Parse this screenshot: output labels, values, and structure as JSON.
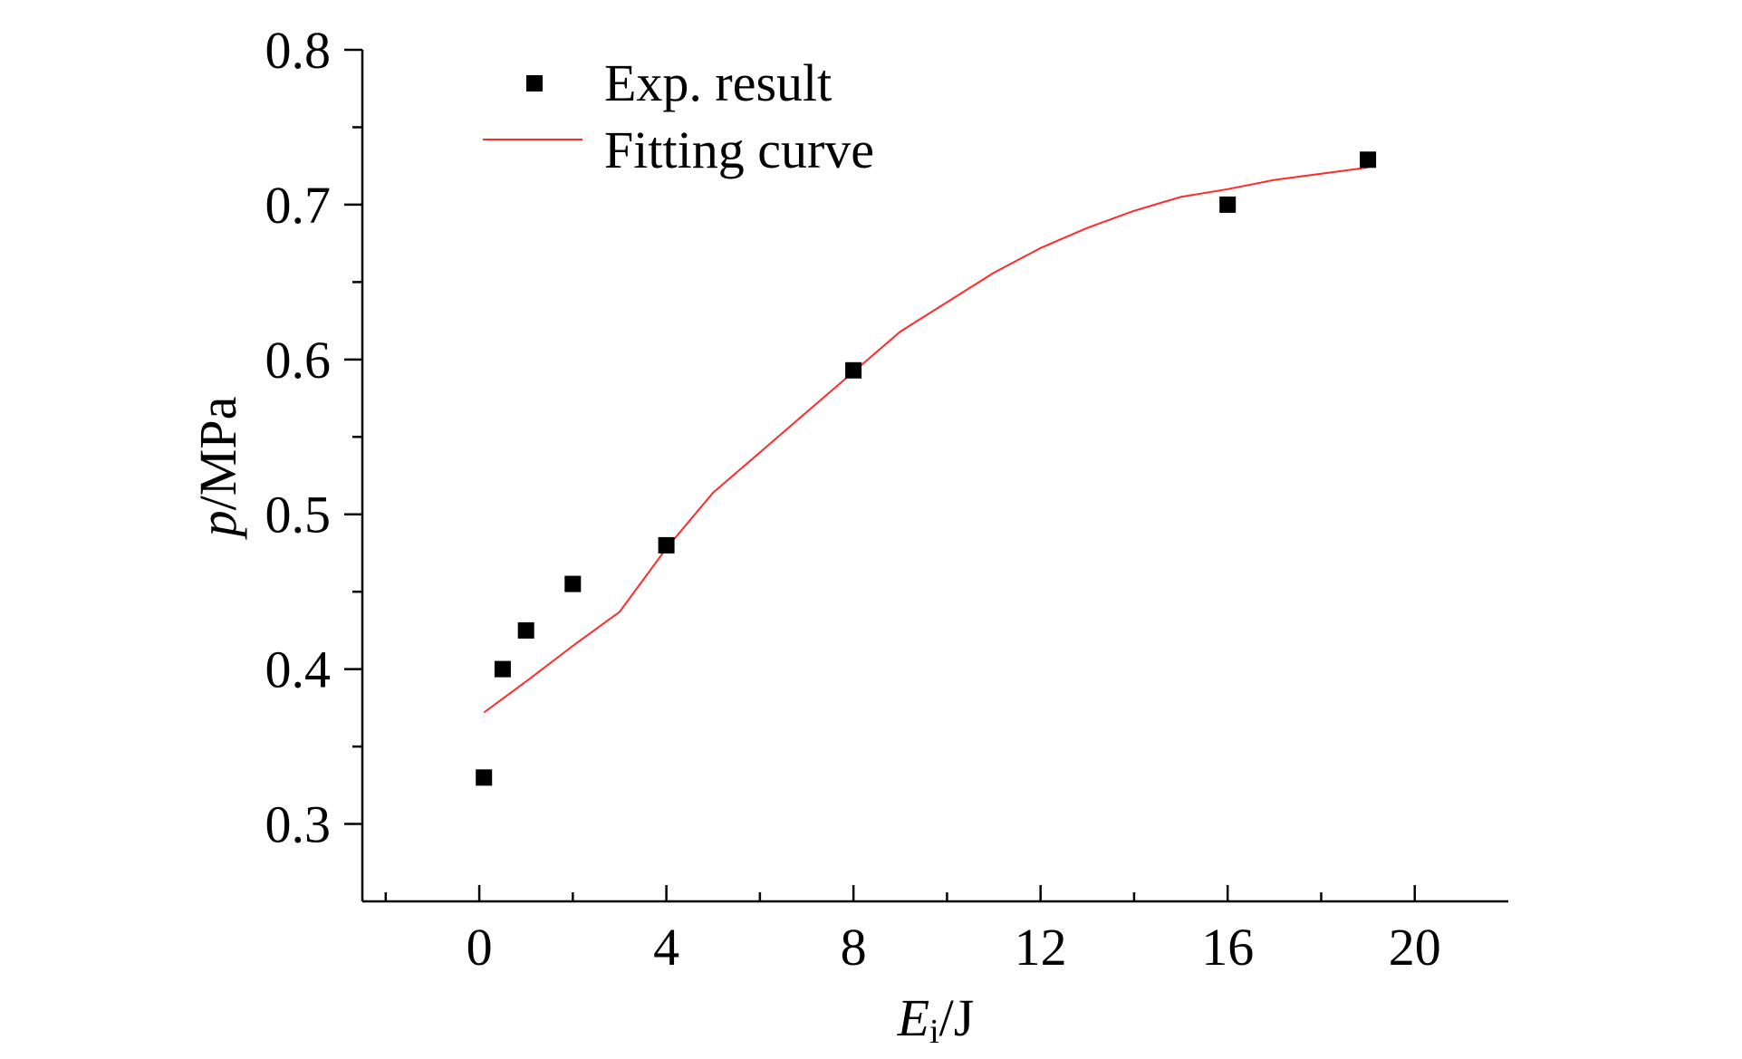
{
  "chart_data": {
    "type": "scatter",
    "xlabel": {
      "main": "E",
      "sub": "i",
      "unit": "/J"
    },
    "ylabel": {
      "main": "p",
      "unit": "/MPa"
    },
    "xlim": [
      -2.5,
      22
    ],
    "ylim": [
      0.25,
      0.8
    ],
    "x_ticks": [
      0,
      4,
      8,
      12,
      16,
      20
    ],
    "x_tick_labels": [
      "0",
      "4",
      "8",
      "12",
      "16",
      "20"
    ],
    "x_minor_ticks": [
      -2,
      2,
      6,
      10,
      14,
      18
    ],
    "y_ticks": [
      0.3,
      0.4,
      0.5,
      0.6,
      0.7,
      0.8
    ],
    "y_tick_labels": [
      "0.3",
      "0.4",
      "0.5",
      "0.6",
      "0.7",
      "0.8"
    ],
    "y_minor_ticks": [
      0.35,
      0.45,
      0.55,
      0.65,
      0.75
    ],
    "grid": false,
    "legend_position": "top-left",
    "series": [
      {
        "name": "Exp. result",
        "kind": "scatter",
        "marker": "square",
        "color": "#000000",
        "x": [
          0.1,
          0.5,
          1,
          2,
          4,
          8,
          16,
          19
        ],
        "y": [
          0.33,
          0.4,
          0.425,
          0.455,
          0.48,
          0.593,
          0.7,
          0.729
        ]
      },
      {
        "name": "Fitting curve",
        "kind": "line",
        "color": "#ff2a2a",
        "x": [
          0.1,
          1,
          2,
          3,
          4,
          5,
          6,
          7,
          8,
          9,
          10,
          11,
          12,
          13,
          14,
          15,
          16,
          17,
          18,
          19
        ],
        "y": [
          0.372,
          0.392,
          0.415,
          0.437,
          0.478,
          0.514,
          0.54,
          0.566,
          0.592,
          0.618,
          0.637,
          0.656,
          0.672,
          0.685,
          0.696,
          0.705,
          0.71,
          0.716,
          0.72,
          0.724
        ]
      }
    ]
  }
}
